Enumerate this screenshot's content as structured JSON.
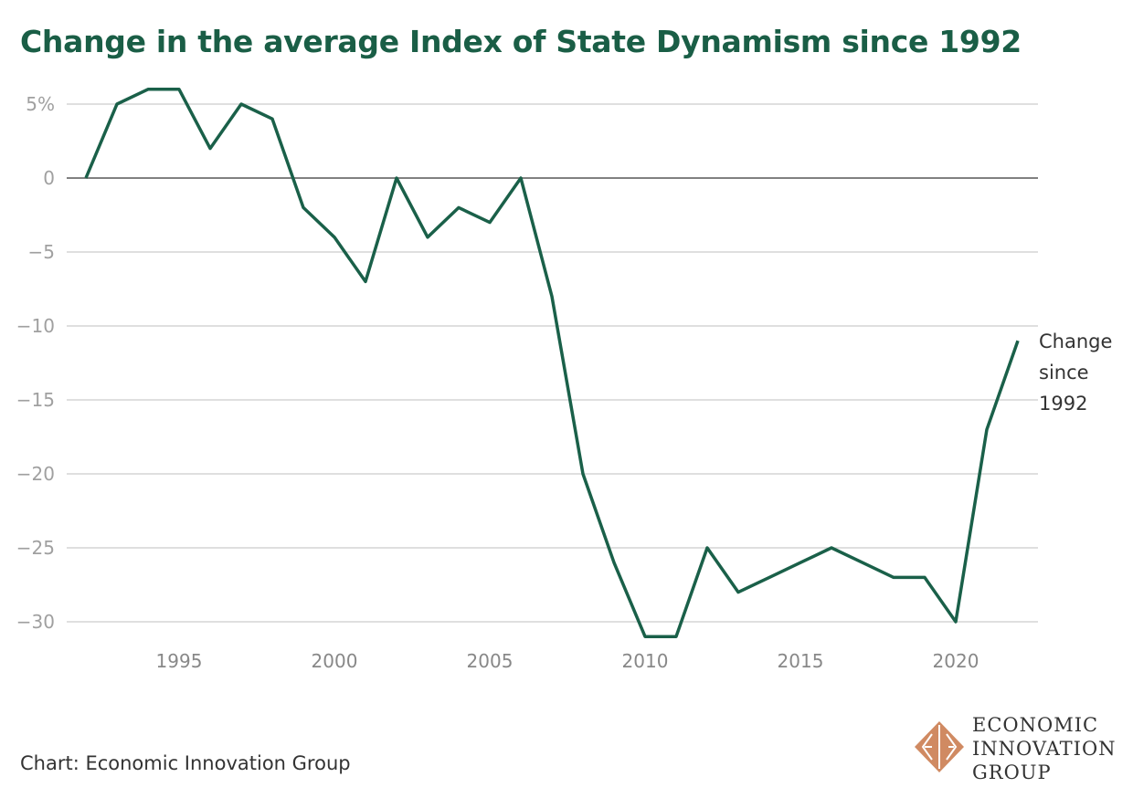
{
  "title": "Change in the average Index of State Dynamism since 1992",
  "source": "Chart: Economic Innovation Group",
  "logo": {
    "lines": [
      "ECONOMIC",
      "INNOVATION",
      "GROUP"
    ]
  },
  "colors": {
    "line": "#1a6049",
    "title": "#1a5e46",
    "grid": "#cccccc",
    "zero": "#808080",
    "tick": "#a0a0a0",
    "logo": "#d08a62"
  },
  "chart_data": {
    "type": "line",
    "title": "Change in the average Index of State Dynamism since 1992",
    "xlabel": "",
    "ylabel": "",
    "xlim": [
      1992,
      2022
    ],
    "ylim": [
      -31,
      6
    ],
    "x_ticks": [
      1995,
      2000,
      2005,
      2010,
      2015,
      2020
    ],
    "y_ticks": [
      {
        "value": 5,
        "label": "5%"
      },
      {
        "value": 0,
        "label": "0"
      },
      {
        "value": -5,
        "label": "−5"
      },
      {
        "value": -10,
        "label": "−10"
      },
      {
        "value": -15,
        "label": "−15"
      },
      {
        "value": -20,
        "label": "−20"
      },
      {
        "value": -25,
        "label": "−25"
      },
      {
        "value": -30,
        "label": "−30"
      }
    ],
    "grid": true,
    "series": [
      {
        "name": "Change since 1992",
        "label_lines": [
          "Change",
          "since",
          "1992"
        ],
        "x": [
          1992,
          1993,
          1994,
          1995,
          1996,
          1997,
          1998,
          1999,
          2000,
          2001,
          2002,
          2003,
          2004,
          2005,
          2006,
          2007,
          2008,
          2009,
          2010,
          2011,
          2012,
          2013,
          2014,
          2015,
          2016,
          2017,
          2018,
          2019,
          2020,
          2021,
          2022
        ],
        "values": [
          0,
          5,
          6,
          6,
          2,
          5,
          4,
          -2,
          -4,
          -7,
          0,
          -4,
          -2,
          -3,
          0,
          -8,
          -20,
          -26,
          -31,
          -31,
          -25,
          -28,
          -27,
          -26,
          -25,
          -26,
          -27,
          -27,
          -30,
          -17,
          -11
        ]
      }
    ]
  }
}
